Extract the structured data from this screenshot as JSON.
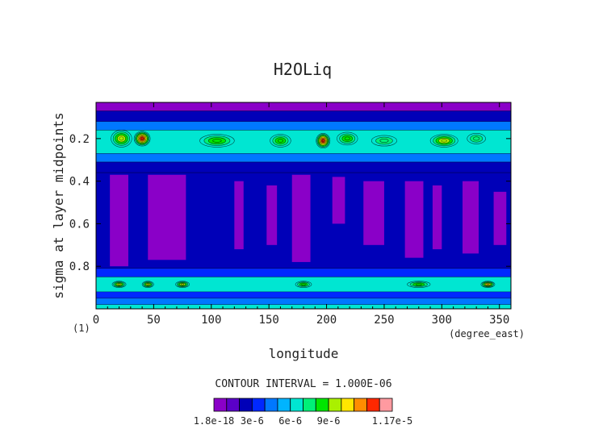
{
  "chart_data": {
    "type": "heatmap",
    "title": "H2OLiq",
    "xlabel": "longitude",
    "ylabel": "sigma at layer midpoints",
    "x_unit": "(degree_east)",
    "corner_label": "(1)",
    "contour_interval_text": "CONTOUR INTERVAL = 1.000E-06",
    "xlim": [
      0,
      360
    ],
    "ylim": [
      1.0,
      0.03
    ],
    "x_ticks": [
      0,
      50,
      100,
      150,
      200,
      250,
      300,
      350
    ],
    "y_ticks": [
      0.2,
      0.4,
      0.6,
      0.8
    ],
    "colorbar": {
      "levels": 12,
      "min": 1.8e-18,
      "max": 1.17e-05,
      "tick_labels": [
        "1.8e-18",
        "3e-6",
        "6e-6",
        "9e-6",
        "1.17e-5"
      ],
      "colors": [
        "#8a00c8",
        "#5a00c8",
        "#0000b8",
        "#0028ff",
        "#0078ff",
        "#00b4ff",
        "#00e6d2",
        "#00f078",
        "#00e600",
        "#aaf000",
        "#ffe600",
        "#ff8c00",
        "#ff2800",
        "#ff9aa0"
      ]
    },
    "bands": [
      {
        "sigma_from": 0.03,
        "sigma_to": 0.07,
        "level": 0
      },
      {
        "sigma_from": 0.07,
        "sigma_to": 0.12,
        "level": 2
      },
      {
        "sigma_from": 0.12,
        "sigma_to": 0.16,
        "level": 4
      },
      {
        "sigma_from": 0.16,
        "sigma_to": 0.27,
        "level": 6
      },
      {
        "sigma_from": 0.27,
        "sigma_to": 0.31,
        "level": 4
      },
      {
        "sigma_from": 0.31,
        "sigma_to": 0.36,
        "level": 2
      },
      {
        "sigma_from": 0.36,
        "sigma_to": 0.81,
        "level": 2
      },
      {
        "sigma_from": 0.81,
        "sigma_to": 0.85,
        "level": 3
      },
      {
        "sigma_from": 0.85,
        "sigma_to": 0.92,
        "level": 6
      },
      {
        "sigma_from": 0.92,
        "sigma_to": 0.95,
        "level": 3
      },
      {
        "sigma_from": 0.95,
        "sigma_to": 0.98,
        "level": 4
      },
      {
        "sigma_from": 0.98,
        "sigma_to": 1.0,
        "level": 6
      }
    ],
    "hotspots": [
      {
        "lon": 22,
        "lon_w": 18,
        "sigma": 0.2,
        "sigma_h": 0.08,
        "level": 9
      },
      {
        "lon": 40,
        "lon_w": 14,
        "sigma": 0.2,
        "sigma_h": 0.07,
        "level": 12
      },
      {
        "lon": 105,
        "lon_w": 30,
        "sigma": 0.21,
        "sigma_h": 0.06,
        "level": 8
      },
      {
        "lon": 160,
        "lon_w": 18,
        "sigma": 0.21,
        "sigma_h": 0.06,
        "level": 8
      },
      {
        "lon": 197,
        "lon_w": 12,
        "sigma": 0.21,
        "sigma_h": 0.07,
        "level": 12
      },
      {
        "lon": 218,
        "lon_w": 18,
        "sigma": 0.2,
        "sigma_h": 0.06,
        "level": 8
      },
      {
        "lon": 250,
        "lon_w": 22,
        "sigma": 0.21,
        "sigma_h": 0.05,
        "level": 7
      },
      {
        "lon": 302,
        "lon_w": 24,
        "sigma": 0.21,
        "sigma_h": 0.06,
        "level": 9
      },
      {
        "lon": 330,
        "lon_w": 16,
        "sigma": 0.2,
        "sigma_h": 0.05,
        "level": 7
      },
      {
        "lon": 20,
        "lon_w": 12,
        "sigma": 0.885,
        "sigma_h": 0.03,
        "level": 9
      },
      {
        "lon": 45,
        "lon_w": 10,
        "sigma": 0.885,
        "sigma_h": 0.03,
        "level": 9
      },
      {
        "lon": 75,
        "lon_w": 12,
        "sigma": 0.885,
        "sigma_h": 0.03,
        "level": 9
      },
      {
        "lon": 180,
        "lon_w": 14,
        "sigma": 0.885,
        "sigma_h": 0.03,
        "level": 8
      },
      {
        "lon": 280,
        "lon_w": 20,
        "sigma": 0.885,
        "sigma_h": 0.03,
        "level": 8
      },
      {
        "lon": 340,
        "lon_w": 12,
        "sigma": 0.885,
        "sigma_h": 0.03,
        "level": 10
      }
    ],
    "dry_columns": [
      {
        "lon_from": 12,
        "lon_to": 28,
        "sigma_from": 0.37,
        "sigma_to": 0.8
      },
      {
        "lon_from": 45,
        "lon_to": 78,
        "sigma_from": 0.37,
        "sigma_to": 0.77
      },
      {
        "lon_from": 120,
        "lon_to": 128,
        "sigma_from": 0.4,
        "sigma_to": 0.72
      },
      {
        "lon_from": 148,
        "lon_to": 157,
        "sigma_from": 0.42,
        "sigma_to": 0.7
      },
      {
        "lon_from": 170,
        "lon_to": 186,
        "sigma_from": 0.37,
        "sigma_to": 0.78
      },
      {
        "lon_from": 205,
        "lon_to": 216,
        "sigma_from": 0.38,
        "sigma_to": 0.6
      },
      {
        "lon_from": 232,
        "lon_to": 250,
        "sigma_from": 0.4,
        "sigma_to": 0.7
      },
      {
        "lon_from": 268,
        "lon_to": 284,
        "sigma_from": 0.4,
        "sigma_to": 0.76
      },
      {
        "lon_from": 292,
        "lon_to": 300,
        "sigma_from": 0.42,
        "sigma_to": 0.72
      },
      {
        "lon_from": 318,
        "lon_to": 332,
        "sigma_from": 0.4,
        "sigma_to": 0.74
      },
      {
        "lon_from": 345,
        "lon_to": 356,
        "sigma_from": 0.45,
        "sigma_to": 0.7
      }
    ]
  }
}
